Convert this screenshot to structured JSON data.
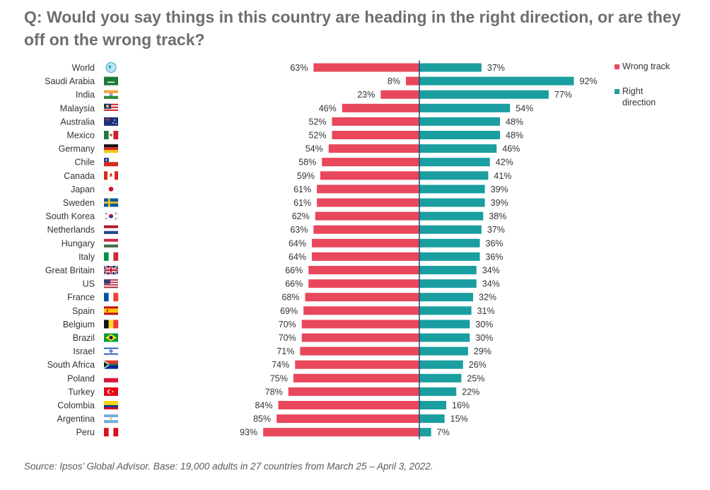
{
  "title": "Q: Would you say things in this country are heading in the right direction, or are they off on the wrong track?",
  "source": "Source: Ipsos’ Global Advisor. Base: 19,000 adults in 27 countries from March 25 – April 3, 2022.",
  "colors": {
    "wrong": "#e8475c",
    "right": "#1a9ea0"
  },
  "chart_data": {
    "type": "bar",
    "orientation": "horizontal-diverging",
    "categories": [
      "World",
      "Saudi Arabia",
      "India",
      "Malaysia",
      "Australia",
      "Mexico",
      "Germany",
      "Chile",
      "Canada",
      "Japan",
      "Sweden",
      "South Korea",
      "Netherlands",
      "Hungary",
      "Italy",
      "Great Britain",
      "US",
      "France",
      "Spain",
      "Belgium",
      "Brazil",
      "Israel",
      "South Africa",
      "Poland",
      "Turkey",
      "Colombia",
      "Argentina",
      "Peru"
    ],
    "flags": [
      "globe-icon",
      "flag-saudi-arabia",
      "flag-india",
      "flag-malaysia",
      "flag-australia",
      "flag-mexico",
      "flag-germany",
      "flag-chile",
      "flag-canada",
      "flag-japan",
      "flag-sweden",
      "flag-south-korea",
      "flag-netherlands",
      "flag-hungary",
      "flag-italy",
      "flag-great-britain",
      "flag-us",
      "flag-france",
      "flag-spain",
      "flag-belgium",
      "flag-brazil",
      "flag-israel",
      "flag-south-africa",
      "flag-poland",
      "flag-turkey",
      "flag-colombia",
      "flag-argentina",
      "flag-peru"
    ],
    "series": [
      {
        "name": "Wrong track",
        "values": [
          63,
          8,
          23,
          46,
          52,
          52,
          54,
          58,
          59,
          61,
          61,
          62,
          63,
          64,
          64,
          66,
          66,
          68,
          69,
          70,
          70,
          71,
          74,
          75,
          78,
          84,
          85,
          93
        ]
      },
      {
        "name": "Right direction",
        "values": [
          37,
          92,
          77,
          54,
          48,
          48,
          46,
          42,
          41,
          39,
          39,
          38,
          37,
          36,
          36,
          34,
          34,
          32,
          31,
          30,
          30,
          29,
          26,
          25,
          22,
          16,
          15,
          7
        ]
      }
    ],
    "value_suffix": "%",
    "legend": {
      "placement": "top-right",
      "items": [
        "Wrong track",
        "Right direction"
      ]
    }
  }
}
